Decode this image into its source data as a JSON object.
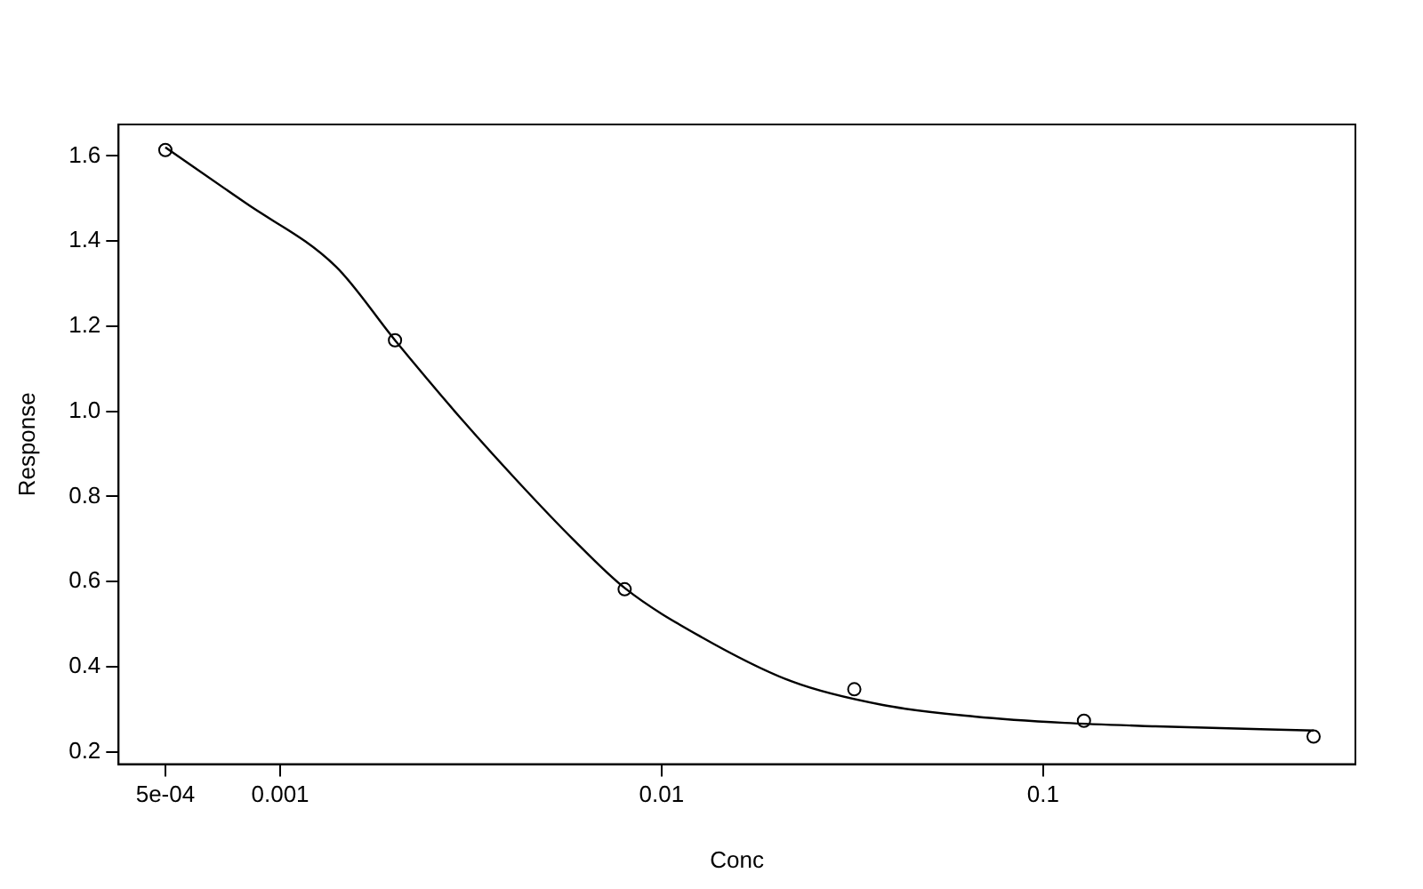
{
  "chart_data": {
    "type": "scatter",
    "xlabel": "Conc",
    "ylabel": "Response",
    "log": "x",
    "xlim": [
      0.000377,
      0.659
    ],
    "xticks": [
      {
        "value": 0.0005,
        "label": "5e-04"
      },
      0.001,
      0.01,
      0.1
    ],
    "ylim": [
      0.171,
      1.674
    ],
    "yticks": [
      0.2,
      0.4,
      0.6,
      0.8,
      {
        "value": 1,
        "label": "1.0"
      },
      1.2,
      1.4,
      1.6
    ],
    "grid": false,
    "legend": false,
    "marker": "circle",
    "series": [
      {
        "color": "#000000",
        "x": [
          0.0005,
          0.002,
          0.008,
          0.032,
          0.128,
          0.512
        ],
        "values": [
          1.614,
          1.167,
          0.582,
          0.347,
          0.273,
          0.236
        ]
      },
      {
        "type": "line",
        "color": "#000000",
        "marker": "none",
        "line_style": "solid",
        "x": [
          0.0005,
          0.00081,
          0.0014,
          0.002,
          0.003,
          0.0042,
          0.00585,
          0.008,
          0.0127,
          0.022,
          0.038,
          0.066,
          0.114,
          0.197,
          0.512
        ],
        "values": [
          1.62,
          1.49,
          1.34,
          1.167,
          0.98,
          0.835,
          0.7,
          0.585,
          0.47,
          0.365,
          0.31,
          0.283,
          0.268,
          0.26,
          0.25
        ]
      }
    ]
  }
}
